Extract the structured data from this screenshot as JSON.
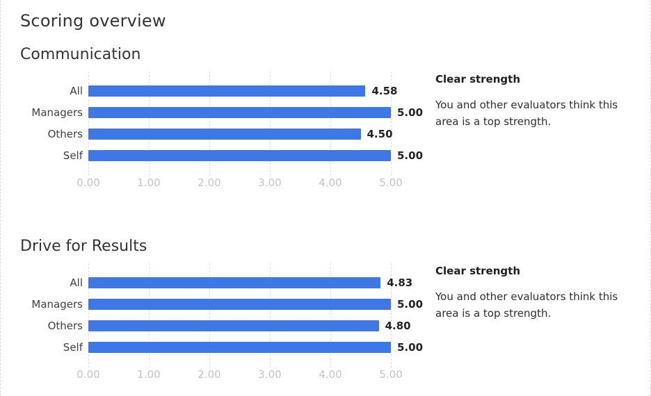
{
  "page": {
    "title": "Scoring overview"
  },
  "colors": {
    "bar": "#3e78e6",
    "gridline": "#dedede",
    "axis_tick": "#c4c4c8",
    "category_label": "#3f3f46",
    "value_label": "#232326",
    "heading": "#33333b",
    "note_heading": "#1f1f23",
    "note_text": "#2e2e33",
    "page_border": "#d6d6d6",
    "background": "#ffffff"
  },
  "sections": [
    {
      "title": "Communication",
      "note": {
        "heading": "Clear strength",
        "text": "You and other evaluators think this area is a top strength."
      }
    },
    {
      "title": "Drive for Results",
      "note": {
        "heading": "Clear strength",
        "text": "You and other evaluators think this area is a top strength."
      }
    }
  ],
  "chart_data": [
    {
      "type": "bar",
      "orientation": "horizontal",
      "title": "Communication",
      "categories": [
        "All",
        "Managers",
        "Others",
        "Self"
      ],
      "values": [
        4.58,
        5.0,
        4.5,
        5.0
      ],
      "value_labels": [
        "4.58",
        "5.00",
        "4.50",
        "5.00"
      ],
      "xlim": [
        0,
        5
      ],
      "x_ticks": [
        0,
        1,
        2,
        3,
        4,
        5
      ],
      "x_tick_labels": [
        "0.00",
        "1.00",
        "2.00",
        "3.00",
        "4.00",
        "5.00"
      ],
      "grid": "vertical-dashed",
      "legend": "none",
      "bar_color": "#3e78e6"
    },
    {
      "type": "bar",
      "orientation": "horizontal",
      "title": "Drive for Results",
      "categories": [
        "All",
        "Managers",
        "Others",
        "Self"
      ],
      "values": [
        4.83,
        5.0,
        4.8,
        5.0
      ],
      "value_labels": [
        "4.83",
        "5.00",
        "4.80",
        "5.00"
      ],
      "xlim": [
        0,
        5
      ],
      "x_ticks": [
        0,
        1,
        2,
        3,
        4,
        5
      ],
      "x_tick_labels": [
        "0.00",
        "1.00",
        "2.00",
        "3.00",
        "4.00",
        "5.00"
      ],
      "grid": "vertical-dashed",
      "legend": "none",
      "bar_color": "#3e78e6"
    }
  ]
}
